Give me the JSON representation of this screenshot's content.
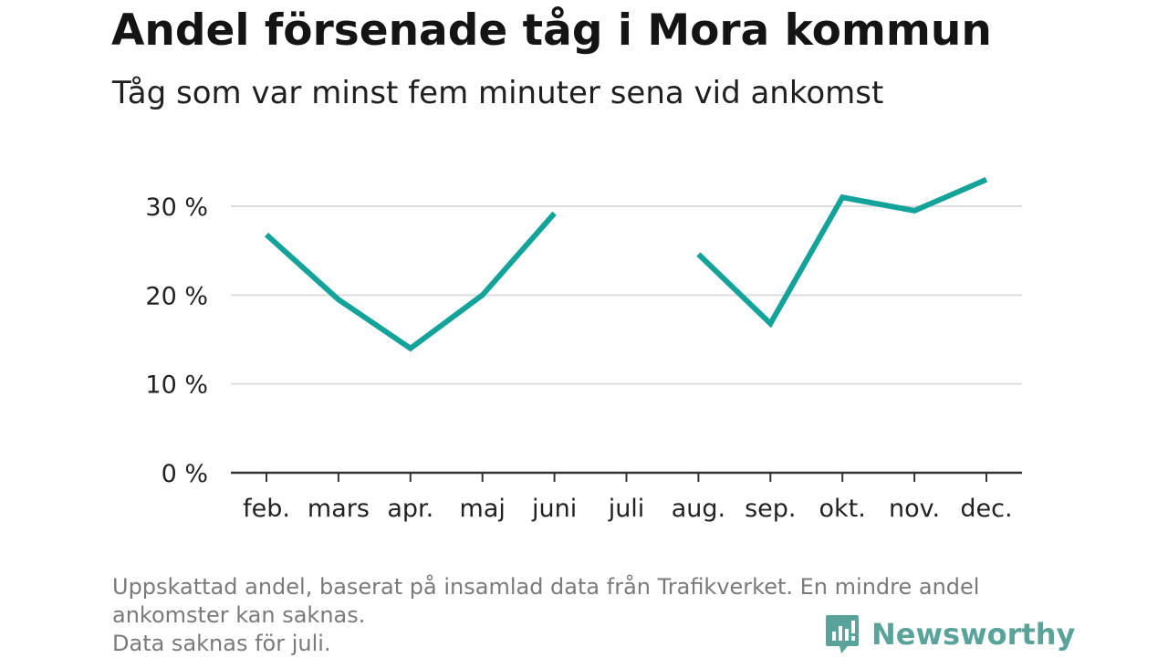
{
  "title": "Andel försenade tåg i Mora kommun",
  "subtitle": "Tåg som var minst fem minuter sena vid ankomst",
  "footnote": {
    "line1": "Uppskattad andel, baserat på insamlad data från Trafikverket. En mindre andel",
    "line2": "ankomster kan saknas.",
    "line3": "Data saknas för juli."
  },
  "brand": {
    "name": "Newsworthy",
    "icon": "newsworthy-logo-icon",
    "color": "#5aa39a"
  },
  "colors": {
    "line": "#14a39a",
    "grid": "#dddddd",
    "axis": "#333333"
  },
  "chart_data": {
    "type": "line",
    "title": "Andel försenade tåg i Mora kommun",
    "subtitle": "Tåg som var minst fem minuter sena vid ankomst",
    "categories": [
      "feb.",
      "mars",
      "apr.",
      "maj",
      "juni",
      "juli",
      "aug.",
      "sep.",
      "okt.",
      "nov.",
      "dec."
    ],
    "values": [
      26.8,
      19.5,
      14.0,
      20.0,
      29.2,
      null,
      24.6,
      16.8,
      31.0,
      29.5,
      33.0
    ],
    "yticks": [
      0,
      10,
      20,
      30
    ],
    "ytick_labels": [
      "0 %",
      "10 %",
      "20 %",
      "30 %"
    ],
    "ylim": [
      0,
      35
    ],
    "grid": true
  }
}
